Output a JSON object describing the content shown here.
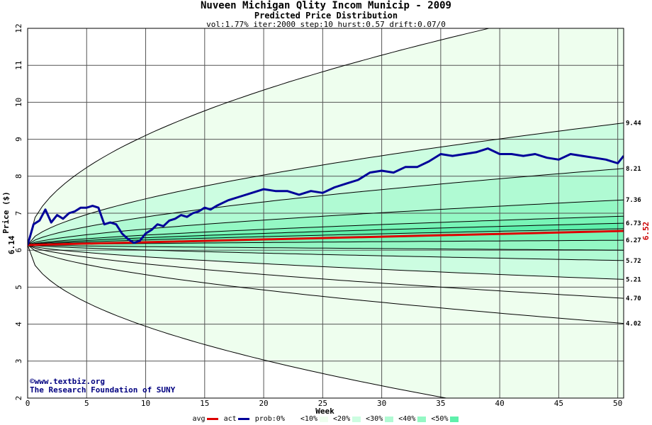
{
  "chart_data": {
    "type": "line",
    "title": "Nuveen Michigan Qlity Incom Municip - 2009",
    "subtitle": "Predicted Price Distribution",
    "params": "vol:1.77% iter:2000 step:10 hurst:0.57 drift:0.07/0",
    "xlabel": "Week",
    "ylabel": "Price ($)",
    "xlim": [
      0,
      50.5
    ],
    "ylim": [
      2,
      12
    ],
    "xticks": [
      0,
      5,
      10,
      15,
      20,
      25,
      30,
      35,
      40,
      45,
      50
    ],
    "yticks": [
      2,
      3,
      4,
      5,
      6,
      7,
      8,
      9,
      10,
      11,
      12
    ],
    "grid": true,
    "start_price": "6.14",
    "start_price_value": 6.14,
    "end_label": "6.52",
    "end_label_value": 6.52,
    "band_labels": [
      "9.44",
      "8.21",
      "7.36",
      "6.73",
      "6.27",
      "5.72",
      "5.21",
      "4.70",
      "4.02"
    ],
    "band_curves": [
      {
        "end": 12.8,
        "k": 0.5
      },
      {
        "end": 9.44,
        "k": 0.6
      },
      {
        "end": 8.21,
        "k": 0.62
      },
      {
        "end": 7.36,
        "k": 0.64
      },
      {
        "end": 6.92,
        "k": 0.66
      },
      {
        "end": 6.73,
        "k": 0.68
      },
      {
        "end": 6.58,
        "k": 0.72
      },
      {
        "end": 6.27,
        "k": 0.72
      },
      {
        "end": 6.0,
        "k": 0.72
      },
      {
        "end": 5.72,
        "k": 0.7
      },
      {
        "end": 5.21,
        "k": 0.66
      },
      {
        "end": 4.7,
        "k": 0.64
      },
      {
        "end": 4.02,
        "k": 0.6
      },
      {
        "end": 1.2,
        "k": 0.5
      }
    ],
    "band_fills": [
      "#eefeee",
      "#ccfde1",
      "#b0fad3",
      "#94f8c4",
      "#78f5b7",
      "#5ef0ab",
      "#78f5b7",
      "#94f8c4",
      "#b0fad3",
      "#ccfde1",
      "#eefeee"
    ],
    "avg_series": {
      "name": "avg",
      "color": "#dd0000",
      "x": [
        0,
        50.5
      ],
      "y": [
        6.14,
        6.52
      ]
    },
    "act_series": {
      "name": "act",
      "color": "#000099",
      "x": [
        0,
        0.5,
        1,
        1.5,
        2,
        2.5,
        3,
        3.5,
        4,
        4.5,
        5,
        5.5,
        6,
        6.5,
        7,
        7.5,
        8,
        8.5,
        9,
        9.5,
        10,
        10.5,
        11,
        11.5,
        12,
        12.5,
        13,
        13.5,
        14,
        14.5,
        15,
        15.5,
        16,
        17,
        18,
        19,
        20,
        21,
        22,
        23,
        24,
        25,
        26,
        27,
        28,
        29,
        30,
        31,
        32,
        33,
        34,
        35,
        36,
        37,
        38,
        39,
        40,
        41,
        42,
        43,
        44,
        45,
        46,
        47,
        48,
        49,
        50,
        50.5
      ],
      "y": [
        6.14,
        6.7,
        6.8,
        7.1,
        6.75,
        6.95,
        6.85,
        7.0,
        7.05,
        7.15,
        7.15,
        7.2,
        7.15,
        6.7,
        6.75,
        6.7,
        6.45,
        6.3,
        6.2,
        6.25,
        6.45,
        6.55,
        6.7,
        6.65,
        6.8,
        6.85,
        6.95,
        6.9,
        7.0,
        7.05,
        7.15,
        7.1,
        7.2,
        7.35,
        7.45,
        7.55,
        7.65,
        7.6,
        7.6,
        7.5,
        7.6,
        7.55,
        7.7,
        7.8,
        7.9,
        8.1,
        8.15,
        8.1,
        8.25,
        8.25,
        8.4,
        8.6,
        8.55,
        8.6,
        8.65,
        8.75,
        8.6,
        8.6,
        8.55,
        8.6,
        8.5,
        8.45,
        8.6,
        8.55,
        8.5,
        8.45,
        8.35,
        8.55
      ]
    }
  },
  "legend": {
    "avg": "avg",
    "act": "act",
    "prob": "prob:0%",
    "b10": "<10%",
    "b20": "<20%",
    "b30": "<30%",
    "b40": "<40%",
    "b50": "<50%"
  },
  "watermark": {
    "line1": "©www.textbiz.org",
    "line2": "The Research Foundation of SUNY"
  }
}
